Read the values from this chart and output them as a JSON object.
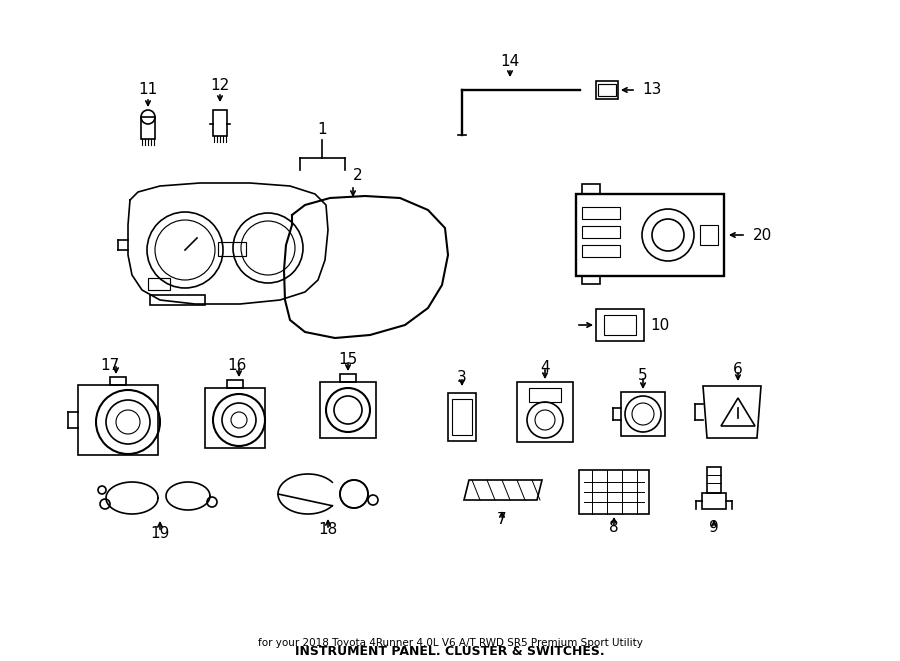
{
  "bg_color": "#ffffff",
  "line_color": "#000000",
  "fig_width": 9.0,
  "fig_height": 6.61,
  "title": "INSTRUMENT PANEL. CLUSTER & SWITCHES.",
  "subtitle": "for your 2018 Toyota 4Runner 4.0L V6 A/T RWD SR5 Premium Sport Utility"
}
